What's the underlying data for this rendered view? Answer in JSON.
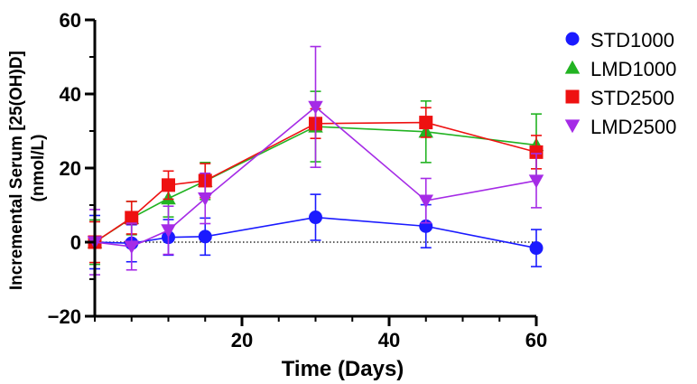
{
  "chart_data": {
    "type": "line",
    "title": "",
    "xlabel": "Time (Days)",
    "ylabel_line1": "Incremental Serum [25(OH)D]",
    "ylabel_line2": "(nmol/L)",
    "xlim": [
      0,
      60
    ],
    "ylim": [
      -20,
      60
    ],
    "x_ticks": [
      20,
      40,
      60
    ],
    "x_tick_labels": [
      "20",
      "40",
      "60"
    ],
    "y_ticks": [
      -20,
      0,
      20,
      40,
      60
    ],
    "y_tick_labels": [
      "−20",
      "0",
      "20",
      "40",
      "60"
    ],
    "x_minor_ticks": [
      0,
      5,
      10,
      15,
      20,
      25,
      30,
      35,
      40,
      45,
      50,
      55,
      60
    ],
    "y_minor_ticks": [
      -20,
      -10,
      0,
      10,
      20,
      30,
      40,
      50,
      60
    ],
    "zero_reference_line": true,
    "grid": false,
    "legend_position": "right",
    "series": [
      {
        "name": "STD1000",
        "color": "#1a1aff",
        "marker": "circle",
        "x": [
          0,
          5,
          10,
          15,
          30,
          45,
          60
        ],
        "y": [
          0,
          -0.3,
          1.3,
          1.5,
          6.7,
          4.3,
          -1.6
        ],
        "err": [
          7.2,
          5.0,
          4.8,
          5.0,
          6.2,
          5.8,
          5.0
        ]
      },
      {
        "name": "LMD1000",
        "color": "#22b322",
        "marker": "triangle-up",
        "x": [
          0,
          5,
          10,
          15,
          30,
          45,
          60
        ],
        "y": [
          0,
          6.5,
          11.8,
          16.5,
          31.2,
          29.8,
          26.2
        ],
        "err": [
          6.0,
          4.5,
          5.0,
          5.0,
          9.5,
          8.3,
          8.4
        ]
      },
      {
        "name": "STD2500",
        "color": "#ee1111",
        "marker": "square",
        "x": [
          0,
          5,
          10,
          15,
          30,
          45,
          60
        ],
        "y": [
          0,
          6.6,
          15.4,
          16.6,
          32.0,
          32.3,
          24.3
        ],
        "err": [
          5.5,
          4.4,
          3.8,
          4.6,
          4.0,
          4.0,
          4.5
        ]
      },
      {
        "name": "LMD2500",
        "color": "#a52be6",
        "marker": "triangle-down",
        "x": [
          0,
          5,
          10,
          15,
          30,
          45,
          60
        ],
        "y": [
          0,
          -1.2,
          3.2,
          11.8,
          36.5,
          11.2,
          16.6
        ],
        "err": [
          8.8,
          6.3,
          6.5,
          6.8,
          16.3,
          6.0,
          7.3
        ]
      }
    ]
  }
}
